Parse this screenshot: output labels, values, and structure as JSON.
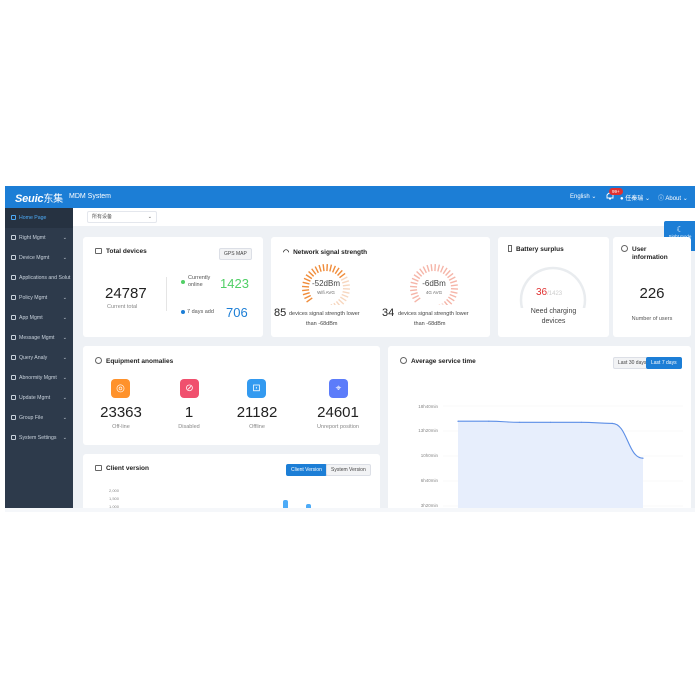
{
  "header": {
    "logo_latin": "Seuic",
    "logo_cn": "东集",
    "system_name": "MDM System",
    "language": "English",
    "notification_badge": "99+",
    "username": "任秦瑞",
    "about": "About"
  },
  "sidebar": {
    "items": [
      {
        "label": "Home Page",
        "icon": "home-icon"
      },
      {
        "label": "Right Mgmt",
        "icon": "key-icon"
      },
      {
        "label": "Device Mgmt",
        "icon": "device-icon"
      },
      {
        "label": "Applications and Solut",
        "icon": "apps-icon"
      },
      {
        "label": "Policy Mgmt",
        "icon": "policy-icon"
      },
      {
        "label": "App Mgmt",
        "icon": "app-icon"
      },
      {
        "label": "Message Mgmt",
        "icon": "message-icon"
      },
      {
        "label": "Query Analy",
        "icon": "query-icon"
      },
      {
        "label": "Abnormity Mgmt",
        "icon": "alert-icon"
      },
      {
        "label": "Update Mgmt",
        "icon": "update-icon"
      },
      {
        "label": "Group File",
        "icon": "folder-icon"
      },
      {
        "label": "System Settings",
        "icon": "gear-icon"
      }
    ]
  },
  "filter": {
    "selected": "所有设备"
  },
  "sight_mode": "Sight mode",
  "total_devices": {
    "title": "Total devices",
    "gps_button": "GPS MAP",
    "total": "24787",
    "total_label": "Current total",
    "online_label": "Currently online",
    "online_value": "1423",
    "added_label": "7 days add",
    "added_value": "706",
    "colors": {
      "online": "#51cf66",
      "added": "#1c7ed6"
    }
  },
  "signal": {
    "title": "Network signal strength",
    "wifi_value": "-52dBm",
    "wifi_label": "Wifi AVG",
    "wifi_level": 0.65,
    "g4_value": "-6dBm",
    "g4_label": "4G AVG",
    "g4_level": 0.95,
    "wifi_count": "85",
    "wifi_desc_1": "devices signal strength lower",
    "wifi_desc_2": "than -68dBm",
    "g4_count": "34",
    "g4_desc_1": "devices signal strength lower",
    "g4_desc_2": "than -68dBm"
  },
  "battery": {
    "title": "Battery surplus",
    "value": "36",
    "total": "/1423",
    "label_1": "Need charging",
    "label_2": "devices",
    "level": 0.025
  },
  "users": {
    "title_1": "User",
    "title_2": "information",
    "value": "226",
    "label": "Number of users"
  },
  "anomalies": {
    "title": "Equipment anomalies",
    "items": [
      {
        "value": "23363",
        "label": "Off-line",
        "color": "#ff922b",
        "icon": "wifi-off-icon"
      },
      {
        "value": "1",
        "label": "Disabled",
        "color": "#f0506e",
        "icon": "ban-icon"
      },
      {
        "value": "21182",
        "label": "Offline",
        "color": "#339af0",
        "icon": "exit-icon"
      },
      {
        "value": "24601",
        "label": "Unreport position",
        "color": "#5c7cfa",
        "icon": "location-icon"
      }
    ]
  },
  "service_time": {
    "title": "Average service time",
    "btn_30": "Last 30 days",
    "btn_7": "Last 7 days",
    "y_ticks": [
      "18h40min",
      "13h20min",
      "10h0min",
      "6h40min",
      "3h20min"
    ],
    "line_color": "#5c8ee6"
  },
  "chart_data": {
    "type": "area",
    "title": "Average service time",
    "y_unit": "min",
    "y_ticks": [
      200,
      400,
      600,
      800,
      1120
    ],
    "x_count": 7,
    "values": [
      980,
      980,
      970,
      970,
      970,
      960,
      640
    ]
  },
  "client_version": {
    "title": "Client version",
    "btn_client": "Client Version",
    "btn_system": "System Version",
    "y_ticks": [
      "2,000",
      "1,500",
      "1,000"
    ]
  }
}
